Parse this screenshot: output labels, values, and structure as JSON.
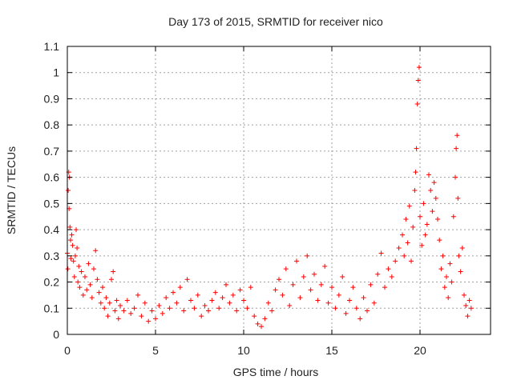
{
  "chart_data": {
    "type": "scatter",
    "title": "Day 173 of 2015, SRMTID for receiver nico",
    "xlabel": "GPS time / hours",
    "ylabel": "SRMTID / TECUs",
    "xlim": [
      0,
      24
    ],
    "ylim": [
      0,
      1.1
    ],
    "xticks": [
      0,
      5,
      10,
      15,
      20
    ],
    "xtick_labels": [
      "0",
      "5",
      "10",
      "15",
      "20"
    ],
    "yticks": [
      0,
      0.1,
      0.2,
      0.3,
      0.4,
      0.5,
      0.6,
      0.7,
      0.8,
      0.9,
      1,
      1.1
    ],
    "ytick_labels": [
      "0",
      "0.1",
      "0.2",
      "0.3",
      "0.4",
      "0.5",
      "0.6",
      "0.7",
      "0.8",
      "0.9",
      "1",
      "1.1"
    ],
    "grid": true,
    "marker": "+",
    "color": "#ff0000",
    "series": [
      {
        "name": "SRMTID",
        "points": [
          [
            0.0,
            0.31
          ],
          [
            0.03,
            0.25
          ],
          [
            0.05,
            0.55
          ],
          [
            0.08,
            0.62
          ],
          [
            0.1,
            0.48
          ],
          [
            0.12,
            0.6
          ],
          [
            0.15,
            0.41
          ],
          [
            0.18,
            0.36
          ],
          [
            0.2,
            0.29
          ],
          [
            0.25,
            0.38
          ],
          [
            0.3,
            0.34
          ],
          [
            0.35,
            0.28
          ],
          [
            0.4,
            0.22
          ],
          [
            0.45,
            0.3
          ],
          [
            0.5,
            0.4
          ],
          [
            0.55,
            0.33
          ],
          [
            0.6,
            0.2
          ],
          [
            0.65,
            0.26
          ],
          [
            0.7,
            0.18
          ],
          [
            0.8,
            0.24
          ],
          [
            0.9,
            0.15
          ],
          [
            1.0,
            0.22
          ],
          [
            1.1,
            0.17
          ],
          [
            1.2,
            0.27
          ],
          [
            1.3,
            0.19
          ],
          [
            1.4,
            0.14
          ],
          [
            1.5,
            0.25
          ],
          [
            1.6,
            0.32
          ],
          [
            1.7,
            0.21
          ],
          [
            1.8,
            0.16
          ],
          [
            1.9,
            0.12
          ],
          [
            2.0,
            0.18
          ],
          [
            2.1,
            0.1
          ],
          [
            2.2,
            0.14
          ],
          [
            2.3,
            0.07
          ],
          [
            2.4,
            0.12
          ],
          [
            2.5,
            0.21
          ],
          [
            2.6,
            0.24
          ],
          [
            2.7,
            0.09
          ],
          [
            2.8,
            0.13
          ],
          [
            2.9,
            0.06
          ],
          [
            3.0,
            0.11
          ],
          [
            3.2,
            0.09
          ],
          [
            3.4,
            0.13
          ],
          [
            3.6,
            0.08
          ],
          [
            3.8,
            0.1
          ],
          [
            4.0,
            0.15
          ],
          [
            4.2,
            0.07
          ],
          [
            4.4,
            0.12
          ],
          [
            4.6,
            0.05
          ],
          [
            4.8,
            0.09
          ],
          [
            5.0,
            0.06
          ],
          [
            5.2,
            0.11
          ],
          [
            5.4,
            0.08
          ],
          [
            5.6,
            0.14
          ],
          [
            5.8,
            0.1
          ],
          [
            6.0,
            0.16
          ],
          [
            6.2,
            0.12
          ],
          [
            6.4,
            0.18
          ],
          [
            6.6,
            0.09
          ],
          [
            6.8,
            0.21
          ],
          [
            7.0,
            0.13
          ],
          [
            7.2,
            0.1
          ],
          [
            7.4,
            0.15
          ],
          [
            7.6,
            0.07
          ],
          [
            7.8,
            0.11
          ],
          [
            8.0,
            0.09
          ],
          [
            8.2,
            0.13
          ],
          [
            8.4,
            0.16
          ],
          [
            8.6,
            0.1
          ],
          [
            8.8,
            0.14
          ],
          [
            9.0,
            0.19
          ],
          [
            9.2,
            0.12
          ],
          [
            9.4,
            0.15
          ],
          [
            9.6,
            0.09
          ],
          [
            9.8,
            0.17
          ],
          [
            10.0,
            0.13
          ],
          [
            10.2,
            0.1
          ],
          [
            10.4,
            0.18
          ],
          [
            10.6,
            0.07
          ],
          [
            10.8,
            0.04
          ],
          [
            11.0,
            0.03
          ],
          [
            11.2,
            0.06
          ],
          [
            11.4,
            0.12
          ],
          [
            11.6,
            0.09
          ],
          [
            11.8,
            0.17
          ],
          [
            12.0,
            0.21
          ],
          [
            12.2,
            0.15
          ],
          [
            12.4,
            0.25
          ],
          [
            12.6,
            0.11
          ],
          [
            12.8,
            0.19
          ],
          [
            13.0,
            0.28
          ],
          [
            13.2,
            0.14
          ],
          [
            13.4,
            0.22
          ],
          [
            13.6,
            0.3
          ],
          [
            13.8,
            0.17
          ],
          [
            14.0,
            0.23
          ],
          [
            14.2,
            0.13
          ],
          [
            14.4,
            0.19
          ],
          [
            14.6,
            0.26
          ],
          [
            14.8,
            0.12
          ],
          [
            15.0,
            0.18
          ],
          [
            15.2,
            0.1
          ],
          [
            15.4,
            0.15
          ],
          [
            15.6,
            0.22
          ],
          [
            15.8,
            0.08
          ],
          [
            16.0,
            0.13
          ],
          [
            16.2,
            0.18
          ],
          [
            16.4,
            0.1
          ],
          [
            16.6,
            0.06
          ],
          [
            16.8,
            0.14
          ],
          [
            17.0,
            0.09
          ],
          [
            17.2,
            0.19
          ],
          [
            17.4,
            0.12
          ],
          [
            17.6,
            0.23
          ],
          [
            17.8,
            0.31
          ],
          [
            18.0,
            0.18
          ],
          [
            18.2,
            0.25
          ],
          [
            18.4,
            0.22
          ],
          [
            18.6,
            0.28
          ],
          [
            18.8,
            0.33
          ],
          [
            19.0,
            0.38
          ],
          [
            19.1,
            0.3
          ],
          [
            19.2,
            0.44
          ],
          [
            19.3,
            0.35
          ],
          [
            19.4,
            0.49
          ],
          [
            19.5,
            0.28
          ],
          [
            19.6,
            0.41
          ],
          [
            19.7,
            0.55
          ],
          [
            19.75,
            0.62
          ],
          [
            19.8,
            0.71
          ],
          [
            19.85,
            0.88
          ],
          [
            19.9,
            0.97
          ],
          [
            19.95,
            1.02
          ],
          [
            20.0,
            0.45
          ],
          [
            20.1,
            0.34
          ],
          [
            20.2,
            0.5
          ],
          [
            20.3,
            0.38
          ],
          [
            20.4,
            0.42
          ],
          [
            20.5,
            0.61
          ],
          [
            20.6,
            0.55
          ],
          [
            20.7,
            0.47
          ],
          [
            20.8,
            0.58
          ],
          [
            20.9,
            0.52
          ],
          [
            21.0,
            0.44
          ],
          [
            21.1,
            0.36
          ],
          [
            21.2,
            0.25
          ],
          [
            21.3,
            0.3
          ],
          [
            21.4,
            0.18
          ],
          [
            21.5,
            0.22
          ],
          [
            21.6,
            0.14
          ],
          [
            21.7,
            0.27
          ],
          [
            21.8,
            0.2
          ],
          [
            21.9,
            0.45
          ],
          [
            22.0,
            0.6
          ],
          [
            22.05,
            0.71
          ],
          [
            22.1,
            0.76
          ],
          [
            22.15,
            0.52
          ],
          [
            22.2,
            0.3
          ],
          [
            22.3,
            0.24
          ],
          [
            22.4,
            0.33
          ],
          [
            22.5,
            0.15
          ],
          [
            22.6,
            0.11
          ],
          [
            22.7,
            0.07
          ],
          [
            22.8,
            0.13
          ],
          [
            22.9,
            0.1
          ]
        ]
      }
    ]
  }
}
